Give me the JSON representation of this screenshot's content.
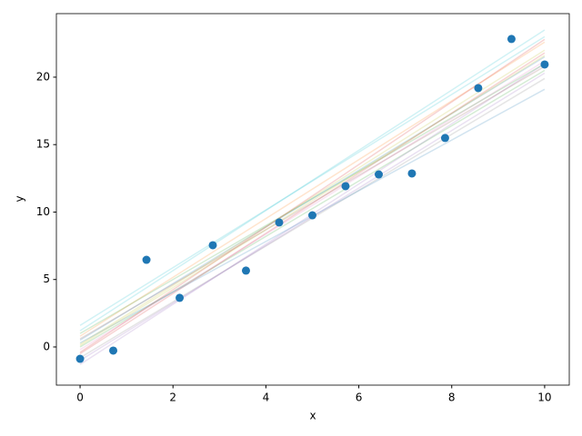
{
  "chart_data": {
    "type": "scatter",
    "x_label": "x",
    "y_label": "y",
    "x": [
      0,
      0.714,
      1.429,
      2.143,
      2.857,
      3.571,
      4.286,
      5,
      5.714,
      6.429,
      7.143,
      7.857,
      8.571,
      9.286,
      10
    ],
    "y": [
      -0.88,
      -0.27,
      6.46,
      3.64,
      7.54,
      5.66,
      9.23,
      9.76,
      11.92,
      12.79,
      12.86,
      15.49,
      19.19,
      22.83,
      20.94
    ],
    "color": "#1f77b4",
    "lines": {
      "x": [
        0,
        10
      ],
      "alpha": 0.2,
      "series": [
        {
          "color": "#1f77b4",
          "values": [
            0.5,
            21.5
          ]
        },
        {
          "color": "#17becf",
          "values": [
            1.2,
            23.5
          ]
        },
        {
          "color": "#d62728",
          "values": [
            -0.5,
            21.8
          ]
        },
        {
          "color": "#2ca02c",
          "values": [
            0.0,
            20.5
          ]
        },
        {
          "color": "#9467bd",
          "values": [
            -1.3,
            21.0
          ]
        },
        {
          "color": "#ff7f0e",
          "values": [
            0.8,
            22.6
          ]
        },
        {
          "color": "#7f7f7f",
          "values": [
            -0.8,
            19.9
          ]
        },
        {
          "color": "#17becf",
          "values": [
            1.6,
            23.0
          ]
        },
        {
          "color": "#bcbd22",
          "values": [
            0.2,
            22.0
          ]
        },
        {
          "color": "#e377c2",
          "values": [
            -0.2,
            21.2
          ]
        },
        {
          "color": "#1f77b4",
          "values": [
            0.3,
            19.1
          ]
        },
        {
          "color": "#9467bd",
          "values": [
            -1.0,
            20.3
          ]
        },
        {
          "color": "#2ca02c",
          "values": [
            1.0,
            21.0
          ]
        },
        {
          "color": "#d62728",
          "values": [
            -0.4,
            22.8
          ]
        },
        {
          "color": "#8c564b",
          "values": [
            0.6,
            20.8
          ]
        },
        {
          "color": "#bcbd22",
          "values": [
            0.1,
            21.6
          ]
        }
      ]
    },
    "xlim": [
      -0.51,
      10.53
    ],
    "ylim": [
      -2.83,
      24.71
    ],
    "xticks": [
      0,
      2,
      4,
      6,
      8,
      10
    ],
    "yticks": [
      0,
      5,
      10,
      15,
      20
    ]
  }
}
